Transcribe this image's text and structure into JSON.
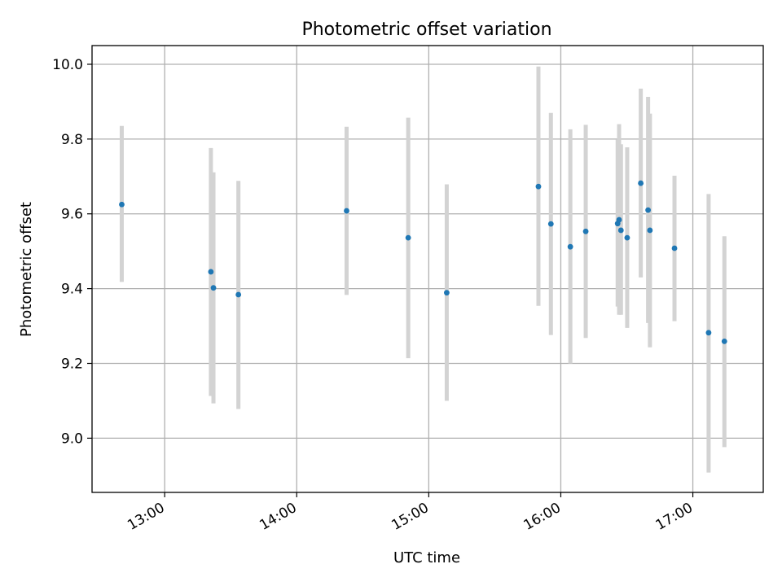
{
  "chart_data": {
    "type": "scatter",
    "title": "Photometric offset variation",
    "xlabel": "UTC time",
    "ylabel": "Photometric offset",
    "x_format": "HH:MM",
    "xlim": [
      "12:27",
      "17:32"
    ],
    "ylim": [
      8.855,
      10.05
    ],
    "x_ticks": [
      "13:00",
      "14:00",
      "15:00",
      "16:00",
      "17:00"
    ],
    "y_ticks": [
      9.0,
      9.2,
      9.4,
      9.6,
      9.8,
      10.0
    ],
    "y_tick_labels": [
      "9.0",
      "9.2",
      "9.4",
      "9.6",
      "9.8",
      "10.0"
    ],
    "grid": true,
    "point_color": "#1f77b4",
    "errorbar_color": "#d3d3d3",
    "points": [
      {
        "x": "12:40:30",
        "y": 9.625,
        "ylow": 9.418,
        "yhigh": 9.835
      },
      {
        "x": "13:21:00",
        "y": 9.445,
        "ylow": 9.113,
        "yhigh": 9.776
      },
      {
        "x": "13:22:10",
        "y": 9.402,
        "ylow": 9.093,
        "yhigh": 9.711
      },
      {
        "x": "13:33:30",
        "y": 9.384,
        "ylow": 9.078,
        "yhigh": 9.688
      },
      {
        "x": "14:22:40",
        "y": 9.608,
        "ylow": 9.383,
        "yhigh": 9.833
      },
      {
        "x": "14:50:40",
        "y": 9.536,
        "ylow": 9.214,
        "yhigh": 9.857
      },
      {
        "x": "15:08:10",
        "y": 9.389,
        "ylow": 9.1,
        "yhigh": 9.679
      },
      {
        "x": "15:49:50",
        "y": 9.673,
        "ylow": 9.354,
        "yhigh": 9.994
      },
      {
        "x": "15:55:30",
        "y": 9.573,
        "ylow": 9.276,
        "yhigh": 9.87
      },
      {
        "x": "16:04:20",
        "y": 9.512,
        "ylow": 9.2,
        "yhigh": 9.826
      },
      {
        "x": "16:11:20",
        "y": 9.553,
        "ylow": 9.268,
        "yhigh": 9.838
      },
      {
        "x": "16:25:50",
        "y": 9.574,
        "ylow": 9.352,
        "yhigh": 9.798
      },
      {
        "x": "16:26:30",
        "y": 9.584,
        "ylow": 9.33,
        "yhigh": 9.84
      },
      {
        "x": "16:27:20",
        "y": 9.556,
        "ylow": 9.33,
        "yhigh": 9.786
      },
      {
        "x": "16:30:10",
        "y": 9.536,
        "ylow": 9.295,
        "yhigh": 9.778
      },
      {
        "x": "16:36:20",
        "y": 9.682,
        "ylow": 9.43,
        "yhigh": 9.935
      },
      {
        "x": "16:39:40",
        "y": 9.61,
        "ylow": 9.308,
        "yhigh": 9.913
      },
      {
        "x": "16:40:30",
        "y": 9.556,
        "ylow": 9.243,
        "yhigh": 9.868
      },
      {
        "x": "16:51:40",
        "y": 9.508,
        "ylow": 9.313,
        "yhigh": 9.702
      },
      {
        "x": "17:07:10",
        "y": 9.282,
        "ylow": 8.908,
        "yhigh": 9.653
      },
      {
        "x": "17:14:20",
        "y": 9.259,
        "ylow": 8.976,
        "yhigh": 9.54
      }
    ]
  }
}
